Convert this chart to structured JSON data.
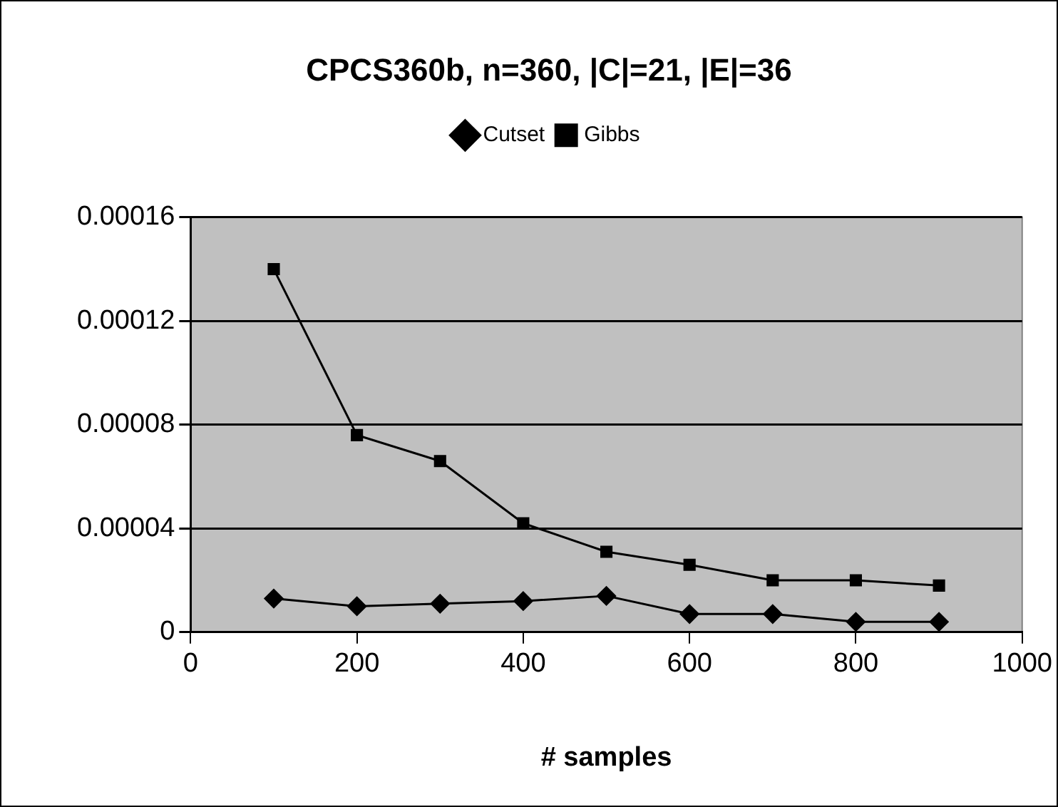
{
  "chart_data": {
    "type": "line",
    "title": "CPCS360b, n=360, |C|=21, |E|=36",
    "xlabel": "# samples",
    "x": [
      100,
      200,
      300,
      400,
      500,
      600,
      700,
      800,
      900
    ],
    "series": [
      {
        "name": "Cutset",
        "color": "#000000",
        "marker": "diamond",
        "values": [
          1.3e-05,
          1e-05,
          1.1e-05,
          1.2e-05,
          1.4e-05,
          7e-06,
          7e-06,
          4e-06,
          4e-06
        ]
      },
      {
        "name": "Gibbs",
        "color": "#000000",
        "marker": "square",
        "values": [
          0.00014,
          7.6e-05,
          6.6e-05,
          4.2e-05,
          3.1e-05,
          2.6e-05,
          2e-05,
          2e-05,
          1.8e-05
        ]
      }
    ],
    "xlim": [
      0,
      1000
    ],
    "xticks": [
      0,
      200,
      400,
      600,
      800,
      1000
    ],
    "ylim": [
      0,
      0.00016
    ],
    "yticks": [
      0,
      {
        "value": 4e-05,
        "label": "0.00004"
      },
      {
        "value": 8e-05,
        "label": "0.00008"
      },
      0.00012,
      0.00016
    ],
    "grid": "y",
    "legend": "top",
    "line_style": "solid"
  }
}
